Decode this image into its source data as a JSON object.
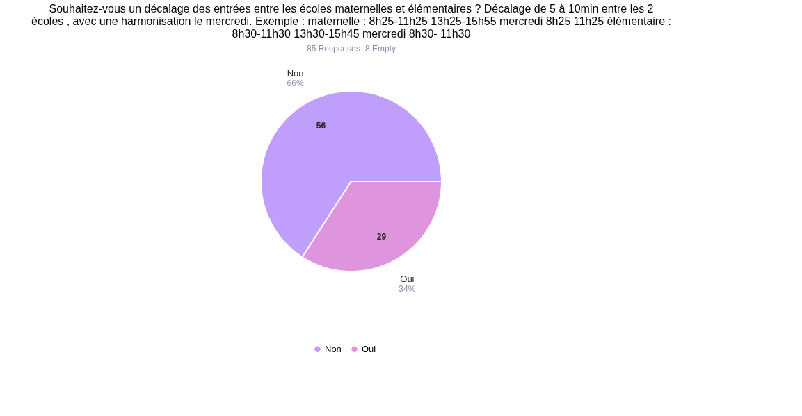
{
  "chart_data": {
    "type": "pie",
    "title": "Souhaitez-vous un décalage des entrées entre les écoles maternelles et élémentaires ? Décalage de 5 à 10min entre les 2 écoles , avec une harmonisation le mercredi. Exemple : maternelle : 8h25-11h25 13h25-15h55 mercredi 8h25 11h25 élémentaire : 8h30-11h30 13h30-15h45 mercredi 8h30- 11h30",
    "subtitle": "85 Responses- 8 Empty",
    "categories": [
      "Non",
      "Oui"
    ],
    "values": [
      56,
      29
    ],
    "colors": [
      "#c09efc",
      "#de95de"
    ],
    "annotations": [
      "66%",
      "34%"
    ],
    "data_labels": true,
    "legend": "bottom"
  }
}
